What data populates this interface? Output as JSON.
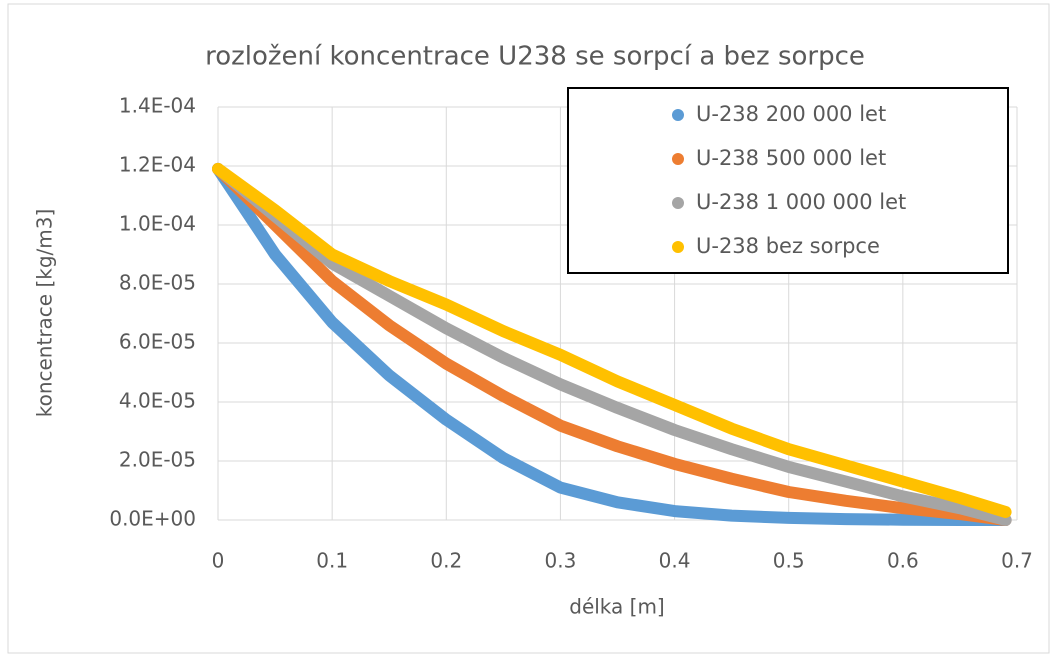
{
  "chart_data": {
    "type": "line",
    "title": "rozložení koncentrace U238 se sorpcí a bez sorpce",
    "xlabel": "délka [m]",
    "ylabel": "koncentrace [kg/m3]",
    "x": [
      0,
      0.05,
      0.1,
      0.15,
      0.2,
      0.25,
      0.3,
      0.35,
      0.4,
      0.45,
      0.5,
      0.55,
      0.6,
      0.65,
      0.69
    ],
    "series": [
      {
        "name": "U-238 200 000 let",
        "color": "#5b9bd5",
        "values": [
          0.000119,
          9e-05,
          6.7e-05,
          4.9e-05,
          3.4e-05,
          2.1e-05,
          1.1e-05,
          6e-06,
          3e-06,
          1.5e-06,
          7e-07,
          3e-07,
          1e-07,
          0,
          0
        ]
      },
      {
        "name": "U-238 500 000 let",
        "color": "#ed7d31",
        "values": [
          0.000119,
          0.0001,
          8.1e-05,
          6.6e-05,
          5.3e-05,
          4.2e-05,
          3.2e-05,
          2.5e-05,
          1.9e-05,
          1.4e-05,
          9.5e-06,
          6.5e-06,
          4e-06,
          2e-06,
          0
        ]
      },
      {
        "name": "U-238 1 000 000 let",
        "color": "#a5a5a5",
        "values": [
          0.000119,
          0.000103,
          8.7e-05,
          7.6e-05,
          6.5e-05,
          5.5e-05,
          4.6e-05,
          3.8e-05,
          3.05e-05,
          2.4e-05,
          1.8e-05,
          1.3e-05,
          8e-06,
          4e-06,
          0
        ]
      },
      {
        "name": "U-238 bez sorpce",
        "color": "#ffc000",
        "values": [
          0.000119,
          0.000105,
          9e-05,
          8.1e-05,
          7.3e-05,
          6.4e-05,
          5.6e-05,
          4.7e-05,
          3.9e-05,
          3.1e-05,
          2.4e-05,
          1.85e-05,
          1.3e-05,
          7.5e-06,
          2.7e-06
        ]
      }
    ],
    "xlim": [
      0,
      0.7
    ],
    "xticks": [
      0,
      0.1,
      0.2,
      0.3,
      0.4,
      0.5,
      0.6,
      0.7
    ],
    "ylim": [
      0,
      0.00014
    ],
    "yticks": [
      {
        "value": 0,
        "label": "0.0E+00"
      },
      {
        "value": 2e-05,
        "label": "2.0E-05"
      },
      {
        "value": 4e-05,
        "label": "4.0E-05"
      },
      {
        "value": 6e-05,
        "label": "6.0E-05"
      },
      {
        "value": 8e-05,
        "label": "8.0E-05"
      },
      {
        "value": 0.0001,
        "label": "1.0E-04"
      },
      {
        "value": 0.00012,
        "label": "1.2E-04"
      },
      {
        "value": 0.00014,
        "label": "1.4E-04"
      }
    ],
    "grid": true,
    "legend": "upper right"
  }
}
